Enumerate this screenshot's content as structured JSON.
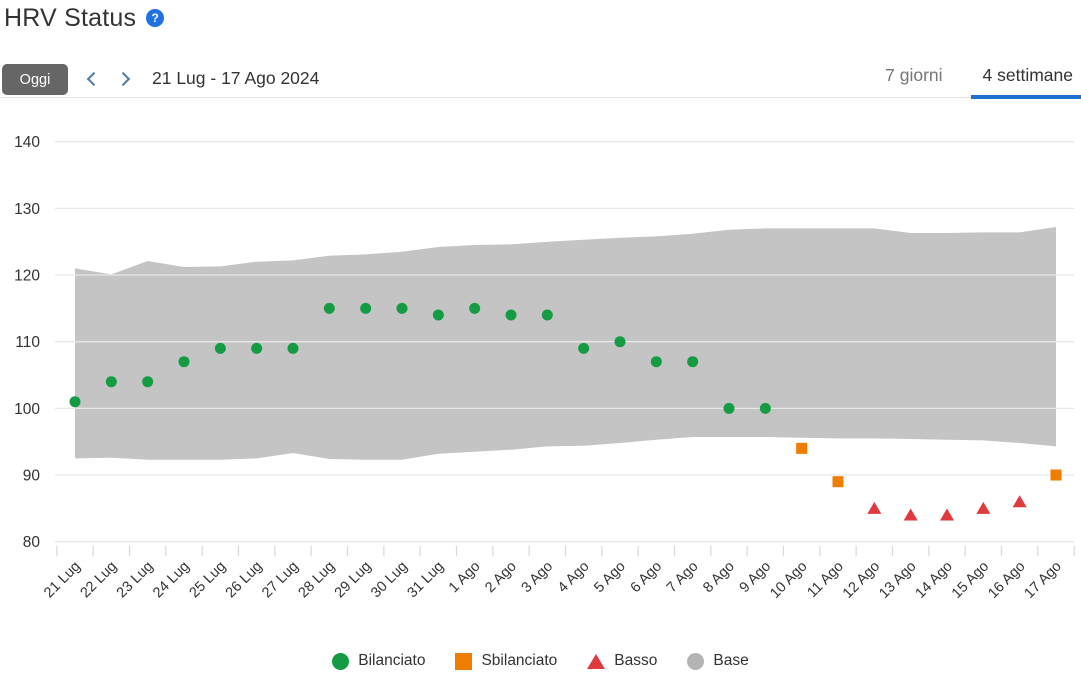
{
  "page": {
    "title": "HRV Status"
  },
  "icons": {
    "help": "?",
    "chevron_left": "chevron-left",
    "chevron_right": "chevron-right"
  },
  "controls": {
    "today_label": "Oggi",
    "date_range": "21 Lug - 17 Ago 2024",
    "tabs": [
      {
        "label": "7 giorni",
        "active": false
      },
      {
        "label": "4 settimane",
        "active": true
      }
    ],
    "active_tab_color": "#1e73cf"
  },
  "chart_data": {
    "type": "scatter",
    "title": "HRV Status",
    "x": [
      "21 Lug",
      "22 Lug",
      "23 Lug",
      "24 Lug",
      "25 Lug",
      "26 Lug",
      "27 Lug",
      "28 Lug",
      "29 Lug",
      "30 Lug",
      "31 Lug",
      "1 Ago",
      "2 Ago",
      "3 Ago",
      "4 Ago",
      "5 Ago",
      "6 Ago",
      "7 Ago",
      "8 Ago",
      "9 Ago",
      "10 Ago",
      "11 Ago",
      "12 Ago",
      "13 Ago",
      "14 Ago",
      "15 Ago",
      "16 Ago",
      "17 Ago"
    ],
    "values": [
      101,
      104,
      104,
      107,
      109,
      109,
      109,
      115,
      115,
      115,
      114,
      115,
      114,
      114,
      109,
      110,
      107,
      107,
      100,
      100,
      94,
      89,
      85,
      84,
      84,
      85,
      86,
      90
    ],
    "status": [
      "bilanciato",
      "bilanciato",
      "bilanciato",
      "bilanciato",
      "bilanciato",
      "bilanciato",
      "bilanciato",
      "bilanciato",
      "bilanciato",
      "bilanciato",
      "bilanciato",
      "bilanciato",
      "bilanciato",
      "bilanciato",
      "bilanciato",
      "bilanciato",
      "bilanciato",
      "bilanciato",
      "bilanciato",
      "bilanciato",
      "sbilanciato",
      "sbilanciato",
      "basso",
      "basso",
      "basso",
      "basso",
      "basso",
      "sbilanciato"
    ],
    "status_colors": {
      "bilanciato": "#169b45",
      "sbilanciato": "#ef7d00",
      "basso": "#e03a3e"
    },
    "status_markers": {
      "bilanciato": "circle",
      "sbilanciato": "square",
      "basso": "triangle"
    },
    "band": {
      "label": "Base",
      "color": "#c4c4c4",
      "top": [
        121,
        120.1,
        122.1,
        121.2,
        121.3,
        122,
        122.2,
        122.9,
        123.1,
        123.5,
        124.2,
        124.5,
        124.6,
        125,
        125.3,
        125.6,
        125.8,
        126.2,
        126.8,
        127,
        127,
        127,
        127,
        126.3,
        126.3,
        126.4,
        126.4,
        127.2
      ],
      "bottom": [
        92.5,
        92.6,
        92.3,
        92.3,
        92.3,
        92.5,
        93.3,
        92.4,
        92.3,
        92.3,
        93.2,
        93.5,
        93.8,
        94.3,
        94.4,
        94.8,
        95.3,
        95.7,
        95.7,
        95.7,
        95.6,
        95.5,
        95.5,
        95.4,
        95.3,
        95.2,
        94.8,
        94.3
      ]
    },
    "ylim": [
      80,
      140
    ],
    "yticks": [
      80,
      90,
      100,
      110,
      120,
      130,
      140
    ],
    "grid": "horizontal",
    "gridline_color": "#e7e7e7",
    "tick_color": "#d9d9d9",
    "axis_label_color": "#333333",
    "legend_position": "bottom"
  },
  "legend": {
    "items": [
      {
        "label": "Bilanciato",
        "marker": "circle",
        "color": "#169b45"
      },
      {
        "label": "Sbilanciato",
        "marker": "square",
        "color": "#ef7d00"
      },
      {
        "label": "Basso",
        "marker": "triangle",
        "color": "#e03a3e"
      },
      {
        "label": "Base",
        "marker": "circle",
        "color": "#b4b4b4"
      }
    ]
  }
}
